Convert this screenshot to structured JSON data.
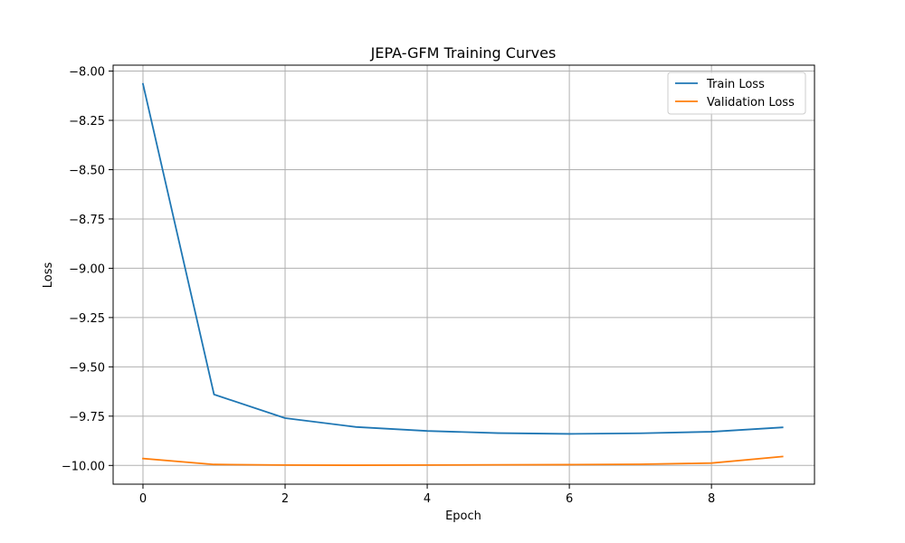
{
  "chart_data": {
    "type": "line",
    "title": "JEPA-GFM Training Curves",
    "xlabel": "Epoch",
    "ylabel": "Loss",
    "x": [
      0,
      1,
      2,
      3,
      4,
      5,
      6,
      7,
      8,
      9
    ],
    "xlim": [
      -0.42,
      9.45
    ],
    "ylim": [
      -10.095,
      -7.97
    ],
    "xticks": [
      0,
      2,
      4,
      6,
      8
    ],
    "xtick_labels": [
      "0",
      "2",
      "4",
      "6",
      "8"
    ],
    "yticks": [
      -8.0,
      -8.25,
      -8.5,
      -8.75,
      -9.0,
      -9.25,
      -9.5,
      -9.75,
      -10.0
    ],
    "ytick_labels": [
      "−8.00",
      "−8.25",
      "−8.50",
      "−8.75",
      "−9.00",
      "−9.25",
      "−9.50",
      "−9.75",
      "−10.00"
    ],
    "grid": true,
    "legend_position": "top-right",
    "series": [
      {
        "name": "Train Loss",
        "color": "#1f77b4",
        "values": [
          -8.065,
          -9.64,
          -9.76,
          -9.805,
          -9.825,
          -9.836,
          -9.84,
          -9.837,
          -9.829,
          -9.807
        ]
      },
      {
        "name": "Validation Loss",
        "color": "#ff7f0e",
        "values": [
          -9.965,
          -9.995,
          -9.998,
          -9.999,
          -9.998,
          -9.997,
          -9.996,
          -9.994,
          -9.988,
          -9.955
        ]
      }
    ]
  }
}
